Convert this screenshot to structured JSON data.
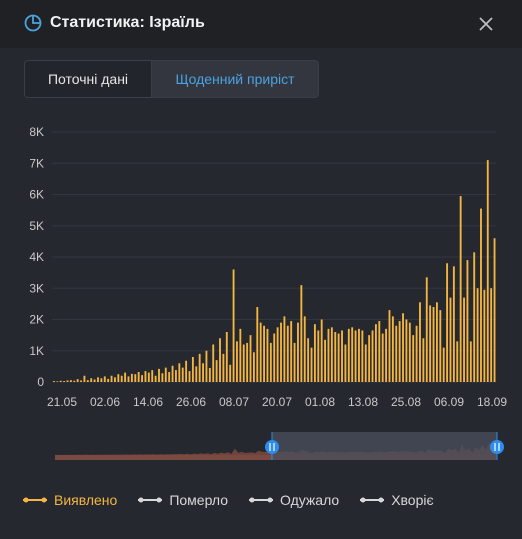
{
  "header": {
    "title": "Статистика: Ізраїль"
  },
  "tabs": [
    {
      "label": "Поточні дані",
      "active": false
    },
    {
      "label": "Щоденний приріст",
      "active": true
    }
  ],
  "legend": [
    {
      "label": "Виявлено",
      "color": "#f4b63f",
      "active": true
    },
    {
      "label": "Померло",
      "color": "#d8d8d8",
      "active": false
    },
    {
      "label": "Одужало",
      "color": "#d8d8d8",
      "active": false
    },
    {
      "label": "Хворіє",
      "color": "#d8d8d8",
      "active": false
    }
  ],
  "colors": {
    "bar": "#f4b63f",
    "accent": "#4aa3e0",
    "grid": "#33363f",
    "axis_text": "#c9c9c9",
    "overview_fill": "#7a4a40",
    "range_fill": "#4a4f5c",
    "handle": "#2d8cf0"
  },
  "chart_data": {
    "type": "bar",
    "yticks": [
      "0",
      "1K",
      "2K",
      "3K",
      "4K",
      "5K",
      "6K",
      "7K",
      "8K"
    ],
    "ylim": [
      0,
      8000
    ],
    "xticks": [
      "21.05",
      "02.06",
      "14.06",
      "26.06",
      "08.07",
      "20.07",
      "01.08",
      "13.08",
      "25.08",
      "06.09",
      "18.09"
    ],
    "grid": true,
    "series": [
      {
        "name": "Виявлено",
        "start_date": "21.05",
        "values": [
          30,
          20,
          40,
          30,
          50,
          60,
          40,
          90,
          50,
          200,
          60,
          120,
          80,
          150,
          120,
          180,
          100,
          200,
          150,
          250,
          200,
          300,
          180,
          260,
          250,
          320,
          220,
          350,
          300,
          380,
          200,
          420,
          280,
          460,
          320,
          520,
          380,
          600,
          460,
          680,
          350,
          800,
          500,
          900,
          600,
          1000,
          450,
          1200,
          700,
          1400,
          900,
          1600,
          550,
          3600,
          1300,
          1700,
          1200,
          1250,
          1500,
          950,
          2400,
          1900,
          1800,
          1700,
          1250,
          1550,
          1750,
          1900,
          2100,
          1800,
          1950,
          1250,
          1900,
          3100,
          2100,
          1400,
          1100,
          1850,
          1650,
          2000,
          1350,
          1700,
          1750,
          1600,
          1550,
          1650,
          1200,
          1700,
          1750,
          1650,
          1700,
          1650,
          1200,
          1500,
          1650,
          1850,
          1950,
          1550,
          1700,
          2300,
          2100,
          1800,
          1950,
          2200,
          2000,
          1900,
          1500,
          1800,
          2550,
          1400,
          3350,
          2450,
          2400,
          2550,
          2300,
          1100,
          3800,
          2700,
          3700,
          1300,
          5950,
          2700,
          3900,
          1300,
          4150,
          3000,
          5550,
          2950,
          7100,
          3000,
          4600
        ]
      }
    ]
  }
}
